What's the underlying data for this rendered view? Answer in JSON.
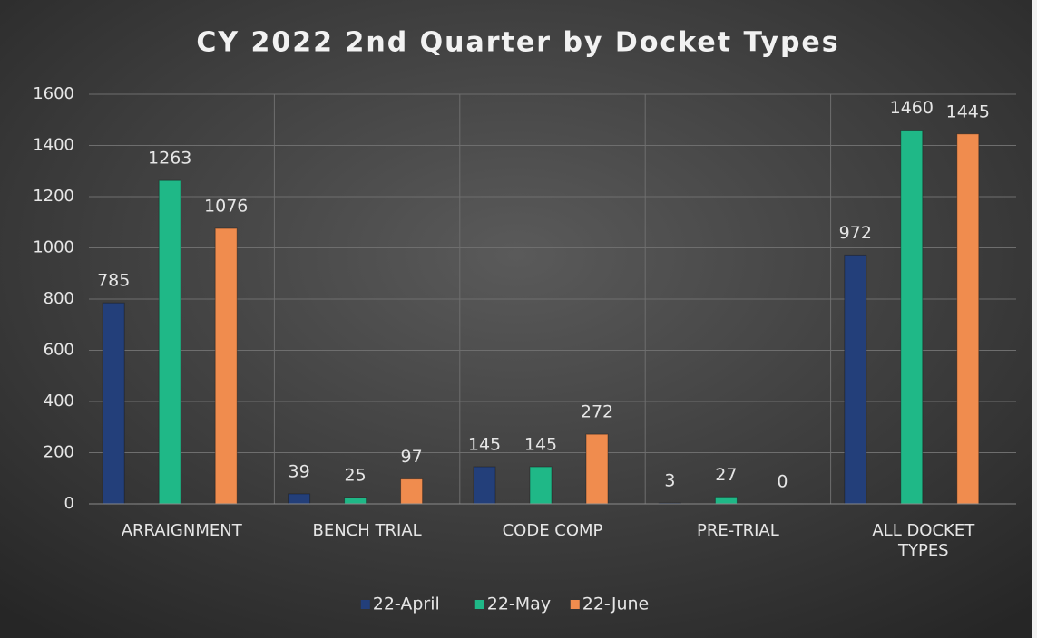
{
  "chart_data": {
    "type": "bar",
    "title": "CY 2022 2nd Quarter by Docket Types",
    "categories": [
      "ARRAIGNMENT",
      "BENCH TRIAL",
      "CODE COMP",
      "PRE-TRIAL",
      "ALL DOCKET TYPES"
    ],
    "series": [
      {
        "name": "22-April",
        "color": "#233f7a",
        "values": [
          785,
          39,
          145,
          3,
          972
        ]
      },
      {
        "name": "22-May",
        "color": "#1fb887",
        "values": [
          1263,
          25,
          145,
          27,
          1460
        ]
      },
      {
        "name": "22-June",
        "color": "#f08c4e",
        "values": [
          1076,
          97,
          272,
          0,
          1445
        ]
      }
    ],
    "ylim": [
      0,
      1600
    ],
    "yticks": [
      0,
      200,
      400,
      600,
      800,
      1000,
      1200,
      1400,
      1600
    ],
    "grid": true,
    "legend": "bottom"
  }
}
